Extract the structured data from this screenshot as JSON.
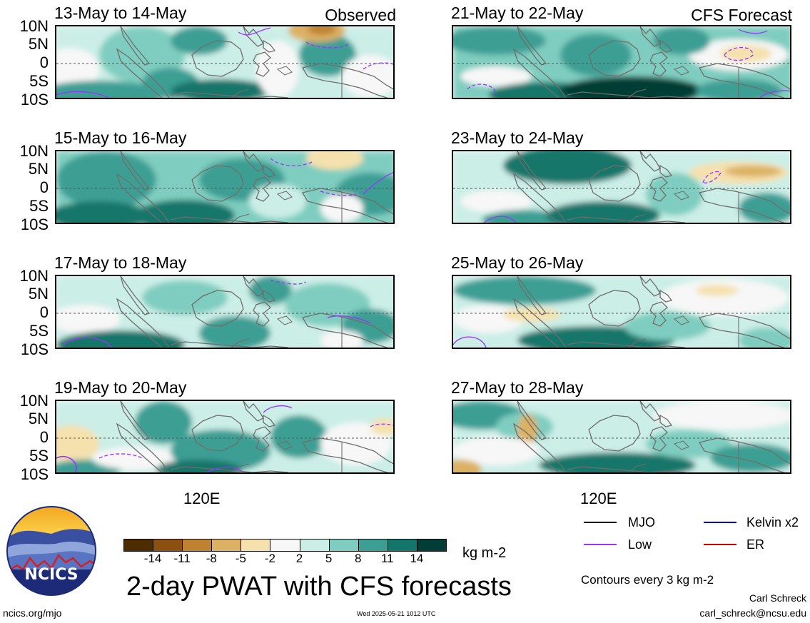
{
  "colors": {
    "frame": "#000000",
    "coast": "#6e6e6e",
    "zero_line": "#555555",
    "mjo": "#000000",
    "low": "#9933ff",
    "kelvin": "#0000cc",
    "er": "#cc0000"
  },
  "panel_labels": {
    "observed": "Observed",
    "forecast": "CFS Forecast"
  },
  "y_ticks": [
    "10N",
    "5N",
    "0",
    "5S",
    "10S"
  ],
  "x_tick": "120E",
  "panels_left": [
    {
      "title": "13-May to 14-May"
    },
    {
      "title": "15-May to 16-May"
    },
    {
      "title": "17-May to 18-May"
    },
    {
      "title": "19-May to 20-May"
    }
  ],
  "panels_right": [
    {
      "title": "21-May to 22-May"
    },
    {
      "title": "23-May to 24-May"
    },
    {
      "title": "25-May to 26-May"
    },
    {
      "title": "27-May to 28-May"
    }
  ],
  "colorbar": {
    "unit": "kg m-2",
    "ticks": [
      "-14",
      "-11",
      "-8",
      "-5",
      "-2",
      "2",
      "5",
      "8",
      "11",
      "14"
    ],
    "colors": [
      "#4d2d00",
      "#8c5010",
      "#bf8230",
      "#dcb164",
      "#f5e1ae",
      "#f7f7f7",
      "#cbeee7",
      "#7fcdc0",
      "#3d9f94",
      "#12766b",
      "#003d36"
    ]
  },
  "legend": {
    "items": [
      {
        "label": "MJO",
        "color": "#000000"
      },
      {
        "label": "Kelvin x2",
        "color": "#0000cc"
      },
      {
        "label": "Low",
        "color": "#9933ff"
      },
      {
        "label": "ER",
        "color": "#cc0000"
      }
    ],
    "contour_note": "Contours every 3 kg m-2"
  },
  "main_title": "2-day PWAT with CFS forecasts",
  "logo_text": "NCICS",
  "footer": {
    "url": "ncics.org/mjo",
    "timestamp": "Wed 2025-05-21 1012 UTC",
    "author": "Carl Schreck",
    "email": "carl_schreck@ncsu.edu"
  }
}
